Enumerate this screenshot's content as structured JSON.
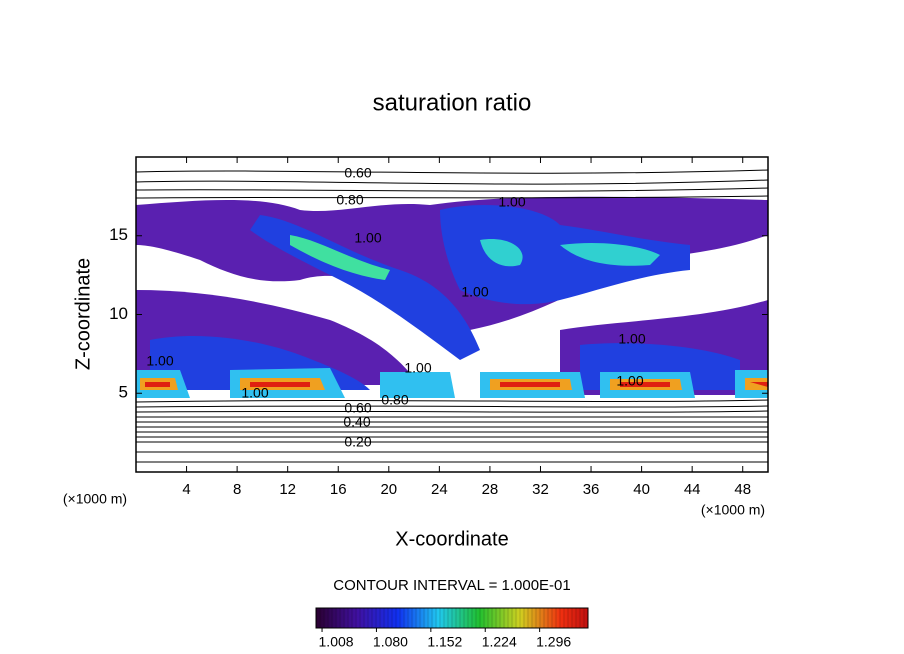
{
  "chart_data": {
    "type": "contour",
    "title": "saturation ratio",
    "x_label": "X-coordinate",
    "y_label": "Z-coordinate",
    "x_unit": "(×1000 m)",
    "xlim": [
      0,
      50
    ],
    "xticks": [
      4,
      8,
      12,
      16,
      20,
      24,
      28,
      32,
      36,
      40,
      44,
      48
    ],
    "ylim": [
      0,
      20
    ],
    "yticks": [
      5,
      10,
      15
    ],
    "contour_levels": [
      {
        "value": 0.2,
        "label": "0.20"
      },
      {
        "value": 0.4,
        "label": "0.40"
      },
      {
        "value": 0.6,
        "label": "0.60"
      },
      {
        "value": 0.8,
        "label": "0.80"
      },
      {
        "value": 1.0,
        "label": "1.00"
      }
    ],
    "contour_interval": "CONTOUR INTERVAL = 1.000E-01",
    "colorbar": {
      "lim": [
        1.0,
        1.36
      ],
      "ticks": [
        1.008,
        {
          "value": 1.08,
          "label": "1.080"
        },
        1.152,
        1.224,
        1.296
      ]
    }
  }
}
